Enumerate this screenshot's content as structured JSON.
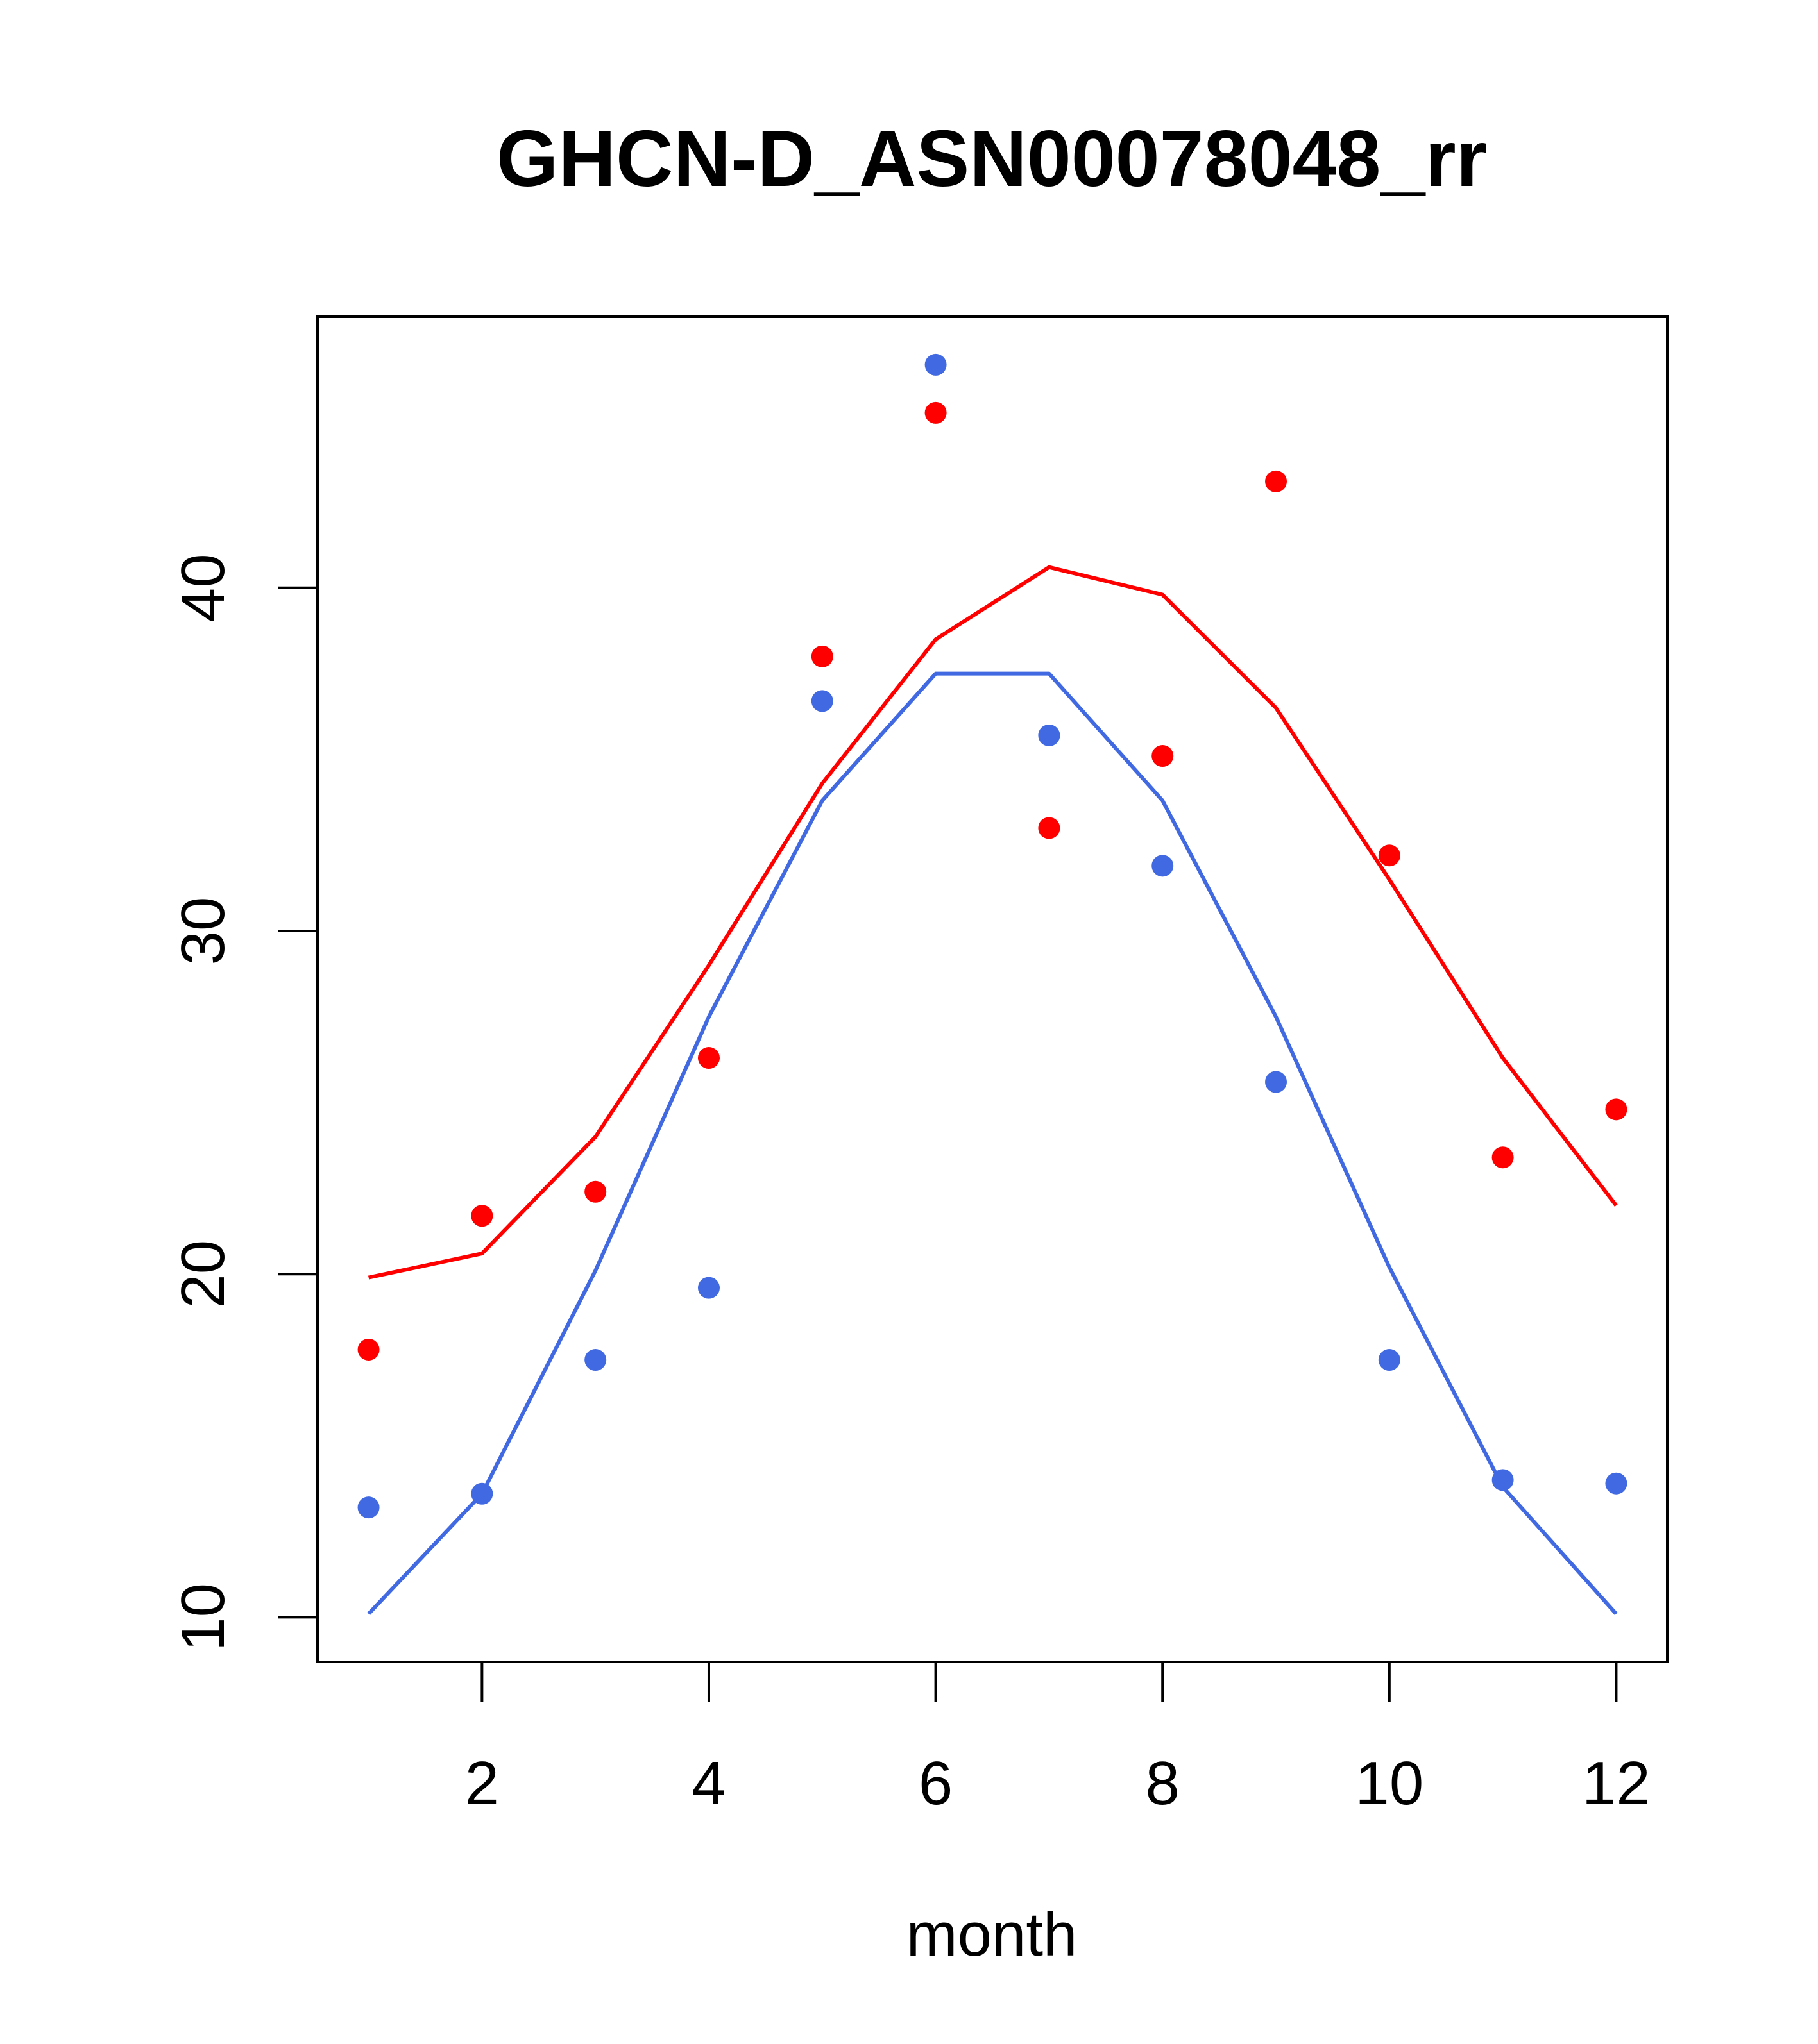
{
  "chart_data": {
    "type": "line",
    "title": "GHCN-D_ASN00078048_rr",
    "xlabel": "month",
    "ylabel": "",
    "xlim": [
      0.55,
      12.45
    ],
    "ylim": [
      8.7,
      47.9
    ],
    "x_ticks": [
      2,
      4,
      6,
      8,
      10,
      12
    ],
    "y_ticks": [
      10,
      20,
      30,
      40
    ],
    "x_tick_labels": [
      "2",
      "4",
      "6",
      "8",
      "10",
      "12"
    ],
    "y_tick_labels": [
      "10",
      "20",
      "30",
      "40"
    ],
    "grid": false,
    "legend": "none",
    "x": [
      1,
      2,
      3,
      4,
      5,
      6,
      7,
      8,
      9,
      10,
      11,
      12
    ],
    "series": [
      {
        "color": "#FF0000",
        "line": [
          19.9,
          20.6,
          24.0,
          29.0,
          34.3,
          38.5,
          40.6,
          39.8,
          36.5,
          31.5,
          26.3,
          22.0
        ],
        "points": [
          17.8,
          21.7,
          22.4,
          26.3,
          38.0,
          45.1,
          33.0,
          35.1,
          43.1,
          32.2,
          23.4,
          24.8
        ]
      },
      {
        "color": "#4169E1",
        "line": [
          10.1,
          13.6,
          20.1,
          27.5,
          33.8,
          37.5,
          37.5,
          33.8,
          27.5,
          20.2,
          13.8,
          10.1
        ],
        "points": [
          13.2,
          13.6,
          17.5,
          19.6,
          36.7,
          46.5,
          35.7,
          31.9,
          25.6,
          17.5,
          14.0,
          13.9
        ]
      }
    ]
  }
}
